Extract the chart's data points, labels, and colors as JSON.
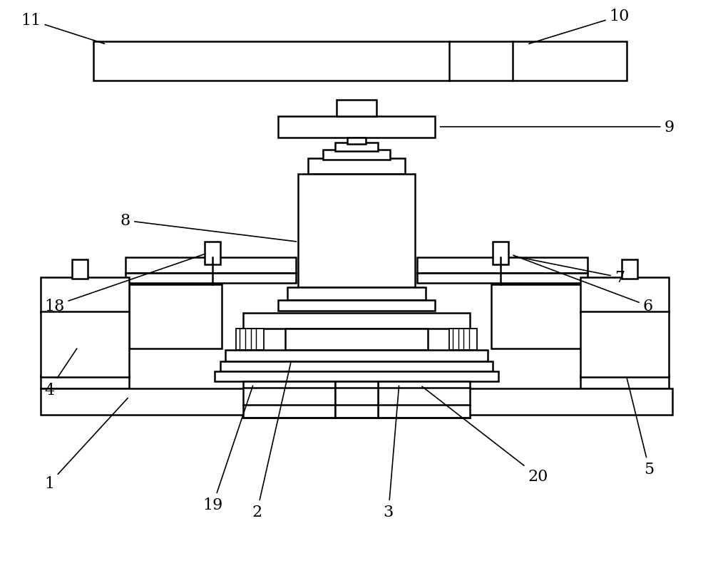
{
  "bg_color": "#ffffff",
  "line_color": "#000000",
  "lw": 1.8,
  "fig_width": 10.0,
  "fig_height": 8.12
}
